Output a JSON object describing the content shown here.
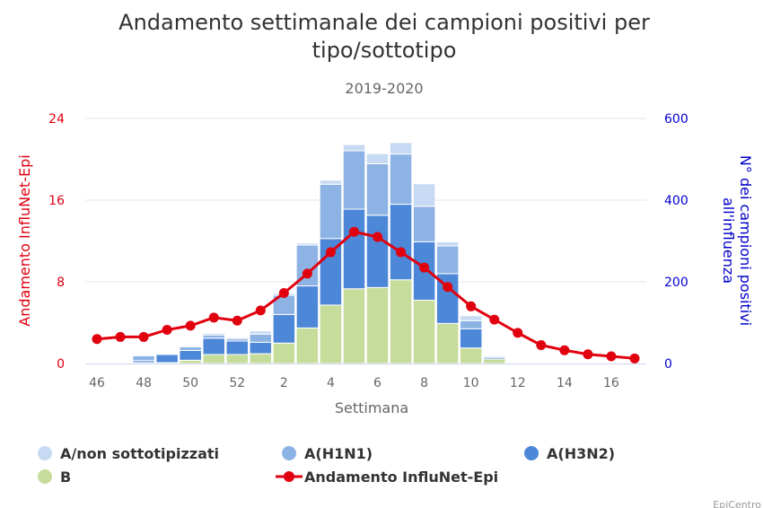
{
  "chart_data": {
    "type": "bar",
    "title_lines": [
      "Andamento settimanale dei campioni positivi per",
      "tipo/sottotipo"
    ],
    "subtitle": "2019-2020",
    "xlabel": "Settimana",
    "ylabel_left": "Andamento InfluNet-Epi",
    "ylabel_right_lines": [
      "N° dei campioni positivi",
      "all'influenza"
    ],
    "ylim_left": [
      0,
      24
    ],
    "ylim_right": [
      0,
      600
    ],
    "yticks_left": [
      0,
      8,
      16,
      24
    ],
    "yticks_right": [
      0,
      200,
      400,
      600
    ],
    "categories": [
      "46",
      "47",
      "48",
      "49",
      "50",
      "51",
      "52",
      "1",
      "2",
      "3",
      "4",
      "5",
      "6",
      "7",
      "8",
      "9",
      "10",
      "11",
      "12",
      "13",
      "14",
      "15",
      "16",
      "17"
    ],
    "xtick_labels": [
      "46",
      "48",
      "50",
      "52",
      "2",
      "4",
      "6",
      "8",
      "10",
      "12",
      "14",
      "16"
    ],
    "xtick_every": 2,
    "grid": true,
    "legend_position": "bottom",
    "series": [
      {
        "name": "B",
        "kind": "bar",
        "axis": "right",
        "color": "#c5dc9b",
        "values": [
          0,
          1,
          2,
          2,
          8,
          22,
          22,
          24,
          50,
          87,
          143,
          183,
          186,
          205,
          155,
          98,
          38,
          11,
          2,
          0,
          0,
          0,
          0,
          0
        ]
      },
      {
        "name": "A(H3N2)",
        "kind": "bar",
        "axis": "right",
        "color": "#4c87d8",
        "values": [
          0,
          0,
          5,
          20,
          24,
          40,
          33,
          28,
          70,
          103,
          163,
          195,
          177,
          185,
          143,
          122,
          47,
          4,
          0,
          0,
          0,
          0,
          0,
          0
        ]
      },
      {
        "name": "A(H1N1)",
        "kind": "bar",
        "axis": "right",
        "color": "#8db3e5",
        "values": [
          0,
          0,
          12,
          1,
          9,
          8,
          6,
          20,
          47,
          100,
          133,
          143,
          126,
          123,
          87,
          68,
          20,
          3,
          0,
          0,
          0,
          0,
          0,
          0
        ]
      },
      {
        "name": "A/non sottotipizzati",
        "kind": "bar",
        "axis": "right",
        "color": "#c6daf3",
        "values": [
          0,
          0,
          1,
          0,
          1,
          4,
          3,
          8,
          5,
          5,
          10,
          15,
          25,
          28,
          55,
          10,
          12,
          2,
          0,
          0,
          0,
          0,
          0,
          0
        ]
      },
      {
        "name": "Andamento InfluNet-Epi",
        "kind": "line",
        "axis": "left",
        "color": "#e0000e",
        "values": [
          2.4,
          2.6,
          2.6,
          3.3,
          3.7,
          4.5,
          4.2,
          5.2,
          6.9,
          8.8,
          10.9,
          12.9,
          12.4,
          10.9,
          9.4,
          7.5,
          5.6,
          4.3,
          3.0,
          1.8,
          1.3,
          0.9,
          0.7,
          0.5
        ]
      }
    ],
    "legend": [
      {
        "name": "A/non sottotipizzati",
        "symbol": "circle",
        "color": "#c6daf3"
      },
      {
        "name": "A(H1N1)",
        "symbol": "circle",
        "color": "#8db3e5"
      },
      {
        "name": "A(H3N2)",
        "symbol": "circle",
        "color": "#4c87d8"
      },
      {
        "name": "B",
        "symbol": "circle",
        "color": "#c5dc9b"
      },
      {
        "name": "Andamento InfluNet-Epi",
        "symbol": "line",
        "color": "#e0000e"
      }
    ],
    "left_axis_color": "#e0000e",
    "right_axis_color": "#0000cc",
    "credit": "EpiCentro"
  }
}
